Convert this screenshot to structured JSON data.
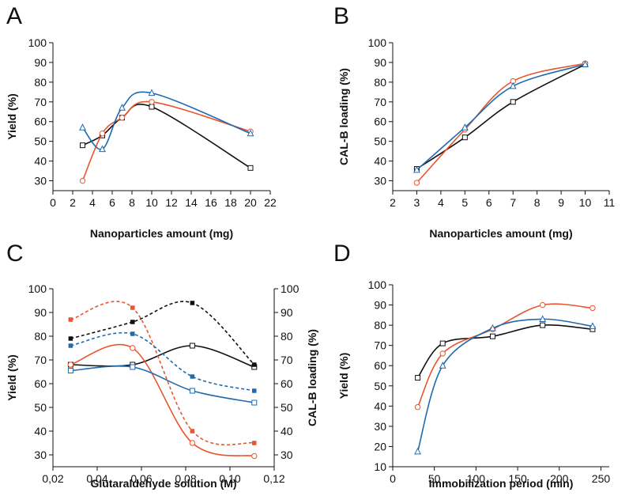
{
  "colors": {
    "black": "#111111",
    "red": "#e8552f",
    "blue": "#1f6ab0"
  },
  "chart_data": [
    {
      "panel": "A",
      "type": "line",
      "xlabel": "Nanoparticles amount (mg)",
      "ylabel": "Yield (%)",
      "xlim": [
        0,
        22
      ],
      "ylim": [
        25,
        100
      ],
      "xticks": [
        "0",
        "2",
        "4",
        "6",
        "8",
        "10",
        "12",
        "14",
        "16",
        "18",
        "20",
        "22"
      ],
      "yticks": [
        "30",
        "40",
        "50",
        "60",
        "70",
        "80",
        "90",
        "100"
      ],
      "series": [
        {
          "name": "black",
          "color": "black",
          "marker": "square-open",
          "x": [
            3,
            5,
            7,
            10,
            20
          ],
          "y": [
            48,
            53,
            62,
            67.5,
            36.5
          ]
        },
        {
          "name": "red",
          "color": "red",
          "marker": "circle-open",
          "x": [
            3,
            5,
            7,
            10,
            20
          ],
          "y": [
            30,
            54,
            62,
            70,
            55
          ]
        },
        {
          "name": "blue",
          "color": "blue",
          "marker": "triangle-open",
          "x": [
            3,
            5,
            7,
            10,
            20
          ],
          "y": [
            57,
            46,
            67,
            74.5,
            54
          ]
        }
      ]
    },
    {
      "panel": "B",
      "type": "line",
      "xlabel": "Nanoparticles amount (mg)",
      "ylabel": "CAL-B loading (%)",
      "xlim": [
        2,
        11
      ],
      "ylim": [
        25,
        100
      ],
      "xticks": [
        "2",
        "3",
        "4",
        "5",
        "6",
        "7",
        "8",
        "9",
        "10",
        "11"
      ],
      "yticks": [
        "30",
        "40",
        "50",
        "60",
        "70",
        "80",
        "90",
        "100"
      ],
      "series": [
        {
          "name": "black",
          "color": "black",
          "marker": "square-open",
          "x": [
            3,
            5,
            7,
            10
          ],
          "y": [
            36,
            52,
            70,
            89
          ]
        },
        {
          "name": "red",
          "color": "red",
          "marker": "circle-open",
          "x": [
            3,
            5,
            7,
            10
          ],
          "y": [
            29,
            56,
            80.5,
            89.5
          ]
        },
        {
          "name": "blue",
          "color": "blue",
          "marker": "triangle-open",
          "x": [
            3,
            5,
            7,
            10
          ],
          "y": [
            35.5,
            57,
            78,
            89
          ]
        }
      ]
    },
    {
      "panel": "C",
      "type": "line",
      "xlabel": "Glutaraldehyde solution (M)",
      "ylabel": "Yield (%)",
      "ylabel_right": "CAL-B loading (%)",
      "xlim": [
        0.02,
        0.12
      ],
      "ylim": [
        25,
        100
      ],
      "xticks": [
        "0,02",
        "0,04",
        "0,06",
        "0,08",
        "0,10",
        "0,12"
      ],
      "yticks": [
        "30",
        "40",
        "50",
        "60",
        "70",
        "80",
        "90",
        "100"
      ],
      "yticks_right": [
        "30",
        "40",
        "50",
        "60",
        "70",
        "80",
        "90",
        "100"
      ],
      "series": [
        {
          "name": "black yield",
          "color": "black",
          "marker": "square-open",
          "style": "solid",
          "x": [
            0.028,
            0.056,
            0.083,
            0.111
          ],
          "y": [
            68,
            68,
            76,
            67
          ]
        },
        {
          "name": "red yield",
          "color": "red",
          "marker": "circle-open",
          "style": "solid",
          "x": [
            0.028,
            0.056,
            0.083,
            0.111
          ],
          "y": [
            68,
            75,
            35,
            29.5
          ]
        },
        {
          "name": "blue yield",
          "color": "blue",
          "marker": "square-open",
          "style": "solid",
          "x": [
            0.028,
            0.056,
            0.083,
            0.111
          ],
          "y": [
            65.5,
            67,
            57,
            52
          ]
        },
        {
          "name": "black loading",
          "color": "black",
          "marker": "square-filled",
          "style": "dashed",
          "x": [
            0.028,
            0.056,
            0.083,
            0.111
          ],
          "y": [
            79,
            86,
            94,
            68
          ]
        },
        {
          "name": "red loading",
          "color": "red",
          "marker": "square-filled",
          "style": "dashed",
          "x": [
            0.028,
            0.056,
            0.083,
            0.111
          ],
          "y": [
            87,
            92,
            40,
            35
          ]
        },
        {
          "name": "blue loading",
          "color": "blue",
          "marker": "square-filled",
          "style": "dashed",
          "x": [
            0.028,
            0.056,
            0.083,
            0.111
          ],
          "y": [
            76,
            81,
            63,
            57
          ]
        }
      ]
    },
    {
      "panel": "D",
      "type": "line",
      "xlabel": "Immobilization period (min)",
      "ylabel": "Yield (%)",
      "xlim": [
        0,
        260
      ],
      "ylim": [
        10,
        100
      ],
      "xticks": [
        "0",
        "50",
        "100",
        "150",
        "200",
        "250"
      ],
      "yticks": [
        "10",
        "20",
        "30",
        "40",
        "50",
        "60",
        "70",
        "80",
        "90",
        "100"
      ],
      "series": [
        {
          "name": "black",
          "color": "black",
          "marker": "square-open",
          "x": [
            30,
            60,
            120,
            180,
            240
          ],
          "y": [
            54,
            71,
            74.5,
            80,
            78
          ]
        },
        {
          "name": "red",
          "color": "red",
          "marker": "circle-open",
          "x": [
            30,
            60,
            120,
            180,
            240
          ],
          "y": [
            39.5,
            66,
            78,
            90,
            88.5
          ]
        },
        {
          "name": "blue",
          "color": "blue",
          "marker": "triangle-open",
          "x": [
            30,
            60,
            120,
            180,
            240
          ],
          "y": [
            17.5,
            60,
            78.5,
            83,
            79.5
          ]
        }
      ]
    }
  ]
}
